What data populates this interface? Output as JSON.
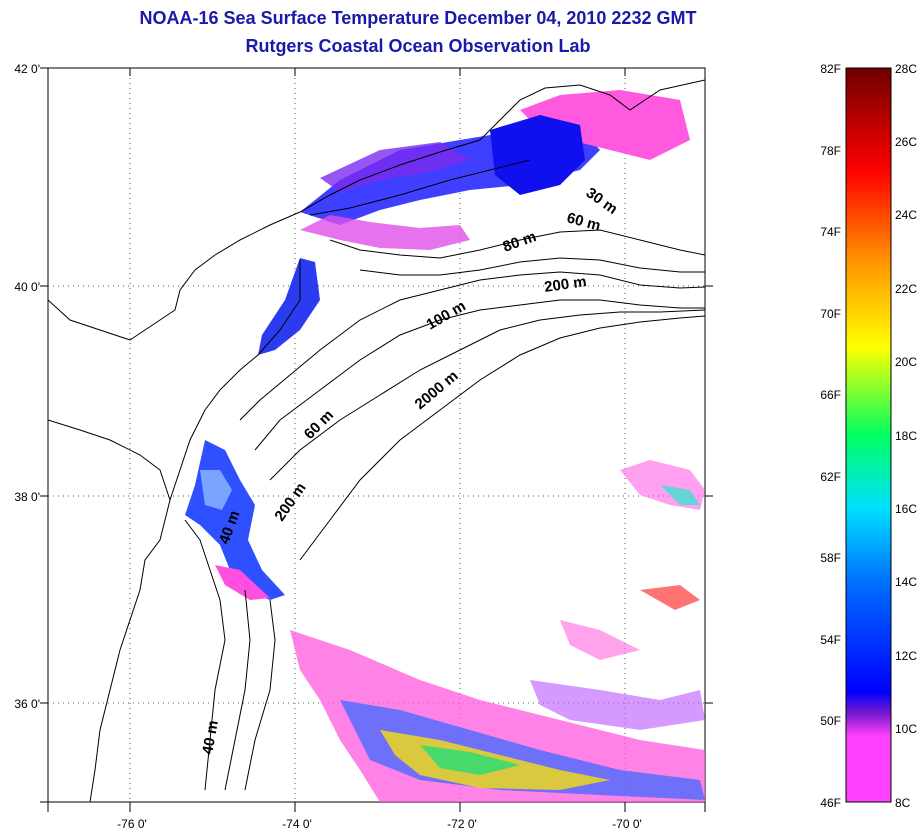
{
  "header": {
    "title": "NOAA-16 Sea Surface Temperature December 04, 2010 2232 GMT",
    "subtitle": "Rutgers Coastal Ocean Observation Lab"
  },
  "map": {
    "lat_ticks": [
      "42 0'",
      "40 0'",
      "38 0'",
      "36 0'"
    ],
    "lon_ticks": [
      "-76 0'",
      "-74 0'",
      "-72 0'",
      "-70 0'"
    ],
    "contour_labels": [
      "30 m",
      "60 m",
      "80 m",
      "200 m",
      "100 m",
      "2000 m",
      "60 m",
      "200 m",
      "40 m",
      "40 m"
    ]
  },
  "colorbar": {
    "f_labels": [
      "82F",
      "78F",
      "74F",
      "70F",
      "66F",
      "62F",
      "58F",
      "54F",
      "50F",
      "46F"
    ],
    "c_labels": [
      "28C",
      "26C",
      "24C",
      "22C",
      "20C",
      "18C",
      "16C",
      "14C",
      "12C",
      "10C",
      "8C"
    ],
    "colors": [
      "#7a0000",
      "#ff0000",
      "#ff8000",
      "#ffff00",
      "#00ff60",
      "#00ffff",
      "#0070ff",
      "#0000ff",
      "#8a2be2",
      "#ff40ff"
    ]
  }
}
